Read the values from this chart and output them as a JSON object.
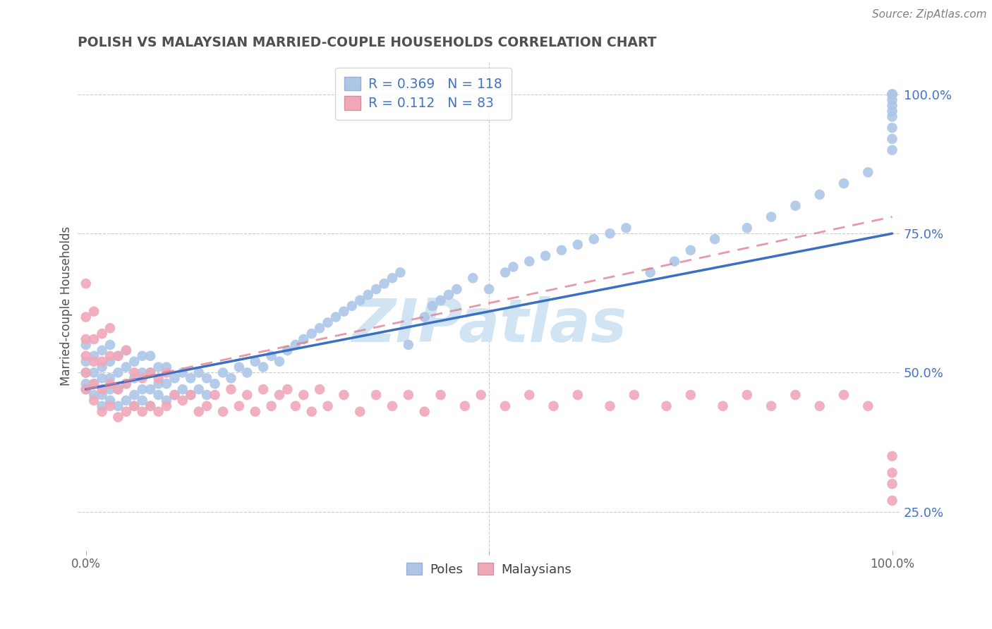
{
  "title": "POLISH VS MALAYSIAN MARRIED-COUPLE HOUSEHOLDS CORRELATION CHART",
  "source": "Source: ZipAtlas.com",
  "ylabel": "Married-couple Households",
  "poles_R": "0.369",
  "poles_N": "118",
  "malaysians_R": "0.112",
  "malaysians_N": "83",
  "poles_color": "#adc6e8",
  "poles_edge_color": "#adc6e8",
  "poles_line_color": "#3a6fc4",
  "malaysians_color": "#f0a8b8",
  "malaysians_edge_color": "#f0a8b8",
  "malaysians_line_color": "#e08090",
  "background_color": "#ffffff",
  "grid_color": "#cccccc",
  "watermark": "ZIPatlas",
  "watermark_color": "#d0e4f4",
  "title_color": "#505050",
  "source_color": "#808080",
  "legend_text_color": "#4472c4",
  "right_tick_color": "#4472c4",
  "bottom_tick_color": "#404040",
  "figsize": [
    14.06,
    8.92
  ],
  "dpi": 100,
  "xlim": [
    -0.01,
    1.01
  ],
  "ylim": [
    0.18,
    1.06
  ],
  "yticks": [
    0.25,
    0.5,
    0.75,
    1.0
  ],
  "ytick_labels": [
    "25.0%",
    "50.0%",
    "75.0%",
    "100.0%"
  ],
  "xtick_positions": [
    0.0,
    0.5,
    1.0
  ],
  "poles_x": [
    0.0,
    0.0,
    0.0,
    0.0,
    0.0,
    0.01,
    0.01,
    0.01,
    0.01,
    0.02,
    0.02,
    0.02,
    0.02,
    0.02,
    0.03,
    0.03,
    0.03,
    0.03,
    0.03,
    0.04,
    0.04,
    0.04,
    0.04,
    0.05,
    0.05,
    0.05,
    0.05,
    0.06,
    0.06,
    0.06,
    0.06,
    0.07,
    0.07,
    0.07,
    0.07,
    0.08,
    0.08,
    0.08,
    0.08,
    0.09,
    0.09,
    0.09,
    0.1,
    0.1,
    0.1,
    0.11,
    0.11,
    0.12,
    0.12,
    0.13,
    0.13,
    0.14,
    0.14,
    0.15,
    0.15,
    0.16,
    0.17,
    0.18,
    0.19,
    0.2,
    0.21,
    0.22,
    0.23,
    0.24,
    0.25,
    0.26,
    0.27,
    0.28,
    0.29,
    0.3,
    0.31,
    0.32,
    0.33,
    0.34,
    0.35,
    0.36,
    0.37,
    0.38,
    0.39,
    0.4,
    0.42,
    0.43,
    0.44,
    0.45,
    0.46,
    0.48,
    0.5,
    0.52,
    0.53,
    0.55,
    0.57,
    0.59,
    0.61,
    0.63,
    0.65,
    0.67,
    0.7,
    0.73,
    0.75,
    0.78,
    0.82,
    0.85,
    0.88,
    0.91,
    0.94,
    0.97,
    1.0,
    1.0,
    1.0,
    1.0,
    1.0,
    1.0,
    1.0,
    1.0,
    1.0,
    1.0,
    1.0,
    1.0
  ],
  "poles_y": [
    0.47,
    0.48,
    0.5,
    0.52,
    0.55,
    0.46,
    0.48,
    0.5,
    0.53,
    0.44,
    0.46,
    0.49,
    0.51,
    0.54,
    0.45,
    0.47,
    0.49,
    0.52,
    0.55,
    0.44,
    0.47,
    0.5,
    0.53,
    0.45,
    0.48,
    0.51,
    0.54,
    0.44,
    0.46,
    0.49,
    0.52,
    0.45,
    0.47,
    0.5,
    0.53,
    0.44,
    0.47,
    0.5,
    0.53,
    0.46,
    0.48,
    0.51,
    0.45,
    0.48,
    0.51,
    0.46,
    0.49,
    0.47,
    0.5,
    0.46,
    0.49,
    0.47,
    0.5,
    0.46,
    0.49,
    0.48,
    0.5,
    0.49,
    0.51,
    0.5,
    0.52,
    0.51,
    0.53,
    0.52,
    0.54,
    0.55,
    0.56,
    0.57,
    0.58,
    0.59,
    0.6,
    0.61,
    0.62,
    0.63,
    0.64,
    0.65,
    0.66,
    0.67,
    0.68,
    0.55,
    0.6,
    0.62,
    0.63,
    0.64,
    0.65,
    0.67,
    0.65,
    0.68,
    0.69,
    0.7,
    0.71,
    0.72,
    0.73,
    0.74,
    0.75,
    0.76,
    0.68,
    0.7,
    0.72,
    0.74,
    0.76,
    0.78,
    0.8,
    0.82,
    0.84,
    0.86,
    0.9,
    0.92,
    0.94,
    0.96,
    0.97,
    0.98,
    0.99,
    1.0,
    1.0,
    1.0,
    1.0,
    1.0
  ],
  "malay_x": [
    0.0,
    0.0,
    0.0,
    0.0,
    0.0,
    0.0,
    0.01,
    0.01,
    0.01,
    0.01,
    0.01,
    0.02,
    0.02,
    0.02,
    0.02,
    0.03,
    0.03,
    0.03,
    0.03,
    0.04,
    0.04,
    0.04,
    0.05,
    0.05,
    0.05,
    0.06,
    0.06,
    0.07,
    0.07,
    0.08,
    0.08,
    0.09,
    0.09,
    0.1,
    0.1,
    0.11,
    0.12,
    0.13,
    0.14,
    0.15,
    0.16,
    0.17,
    0.18,
    0.19,
    0.2,
    0.21,
    0.22,
    0.23,
    0.24,
    0.25,
    0.26,
    0.27,
    0.28,
    0.29,
    0.3,
    0.32,
    0.34,
    0.36,
    0.38,
    0.4,
    0.42,
    0.44,
    0.47,
    0.49,
    0.52,
    0.55,
    0.58,
    0.61,
    0.65,
    0.68,
    0.72,
    0.75,
    0.79,
    0.82,
    0.85,
    0.88,
    0.91,
    0.94,
    0.97,
    1.0,
    1.0,
    1.0,
    1.0
  ],
  "malay_y": [
    0.47,
    0.5,
    0.53,
    0.56,
    0.6,
    0.66,
    0.45,
    0.48,
    0.52,
    0.56,
    0.61,
    0.43,
    0.47,
    0.52,
    0.57,
    0.44,
    0.48,
    0.53,
    0.58,
    0.42,
    0.47,
    0.53,
    0.43,
    0.48,
    0.54,
    0.44,
    0.5,
    0.43,
    0.49,
    0.44,
    0.5,
    0.43,
    0.49,
    0.44,
    0.5,
    0.46,
    0.45,
    0.46,
    0.43,
    0.44,
    0.46,
    0.43,
    0.47,
    0.44,
    0.46,
    0.43,
    0.47,
    0.44,
    0.46,
    0.47,
    0.44,
    0.46,
    0.43,
    0.47,
    0.44,
    0.46,
    0.43,
    0.46,
    0.44,
    0.46,
    0.43,
    0.46,
    0.44,
    0.46,
    0.44,
    0.46,
    0.44,
    0.46,
    0.44,
    0.46,
    0.44,
    0.46,
    0.44,
    0.46,
    0.44,
    0.46,
    0.44,
    0.46,
    0.44,
    0.3,
    0.27,
    0.32,
    0.35
  ]
}
